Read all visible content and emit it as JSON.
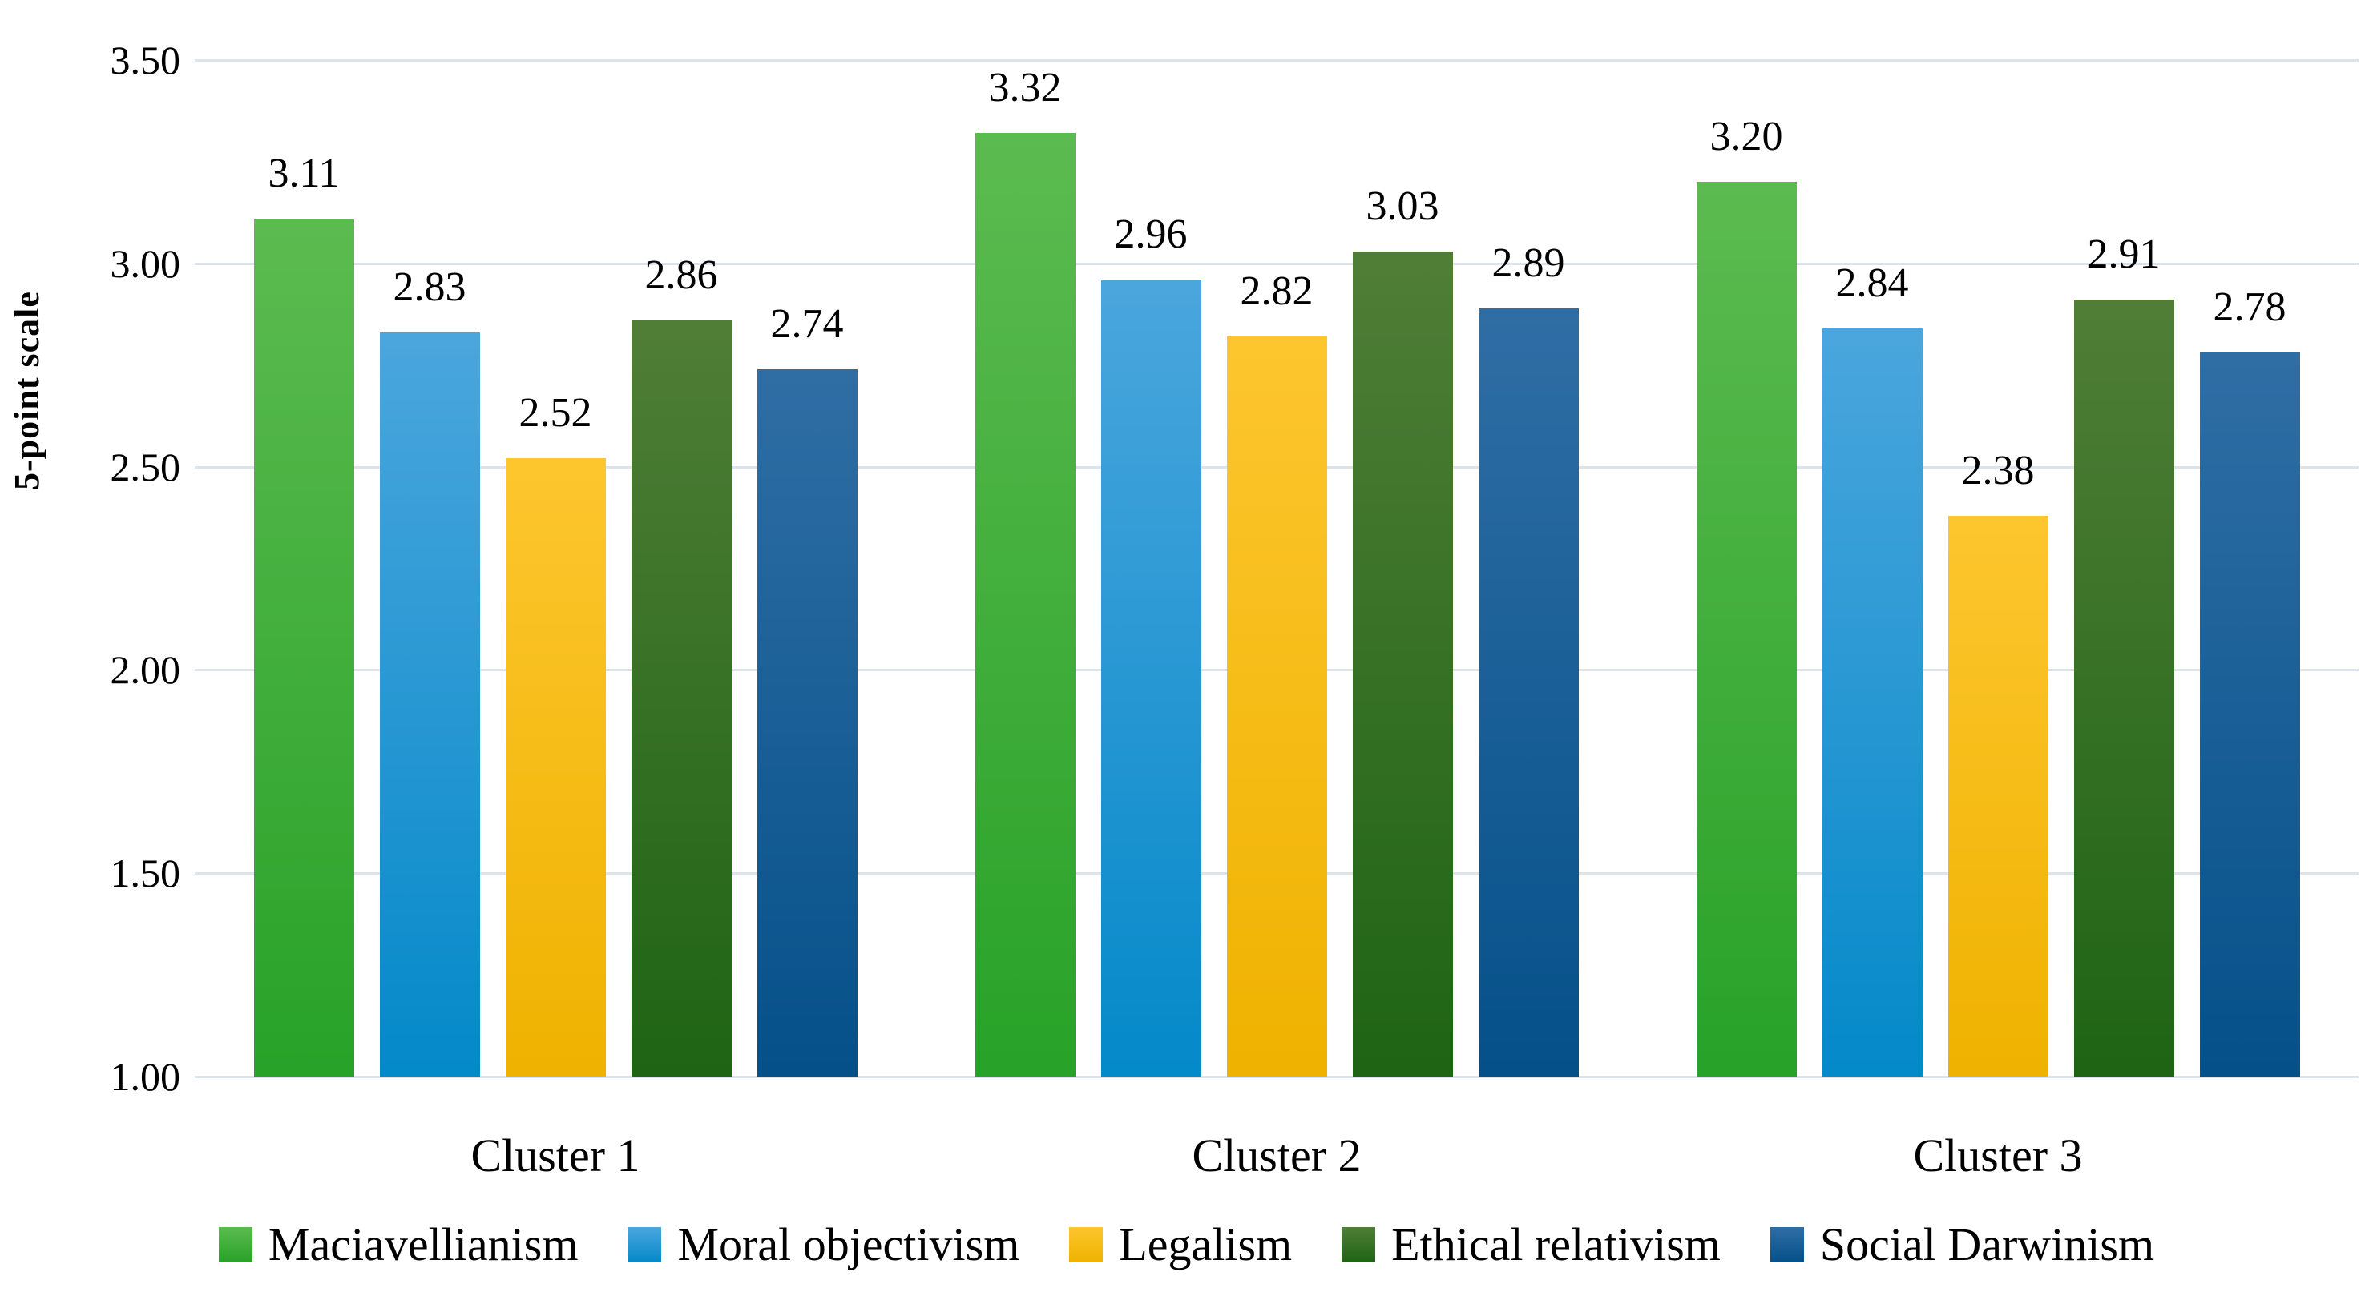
{
  "chart_data": {
    "type": "bar",
    "title": "",
    "ylabel": "5-point scale",
    "xlabel": "",
    "ylim": [
      1.0,
      3.5
    ],
    "ytick_step": 0.5,
    "yticks": [
      3.5,
      3.0,
      2.5,
      2.0,
      1.5,
      1.0
    ],
    "ytick_labels": [
      "3.50",
      "3.00",
      "2.50",
      "2.00",
      "1.50",
      "1.00"
    ],
    "categories": [
      "Cluster 1",
      "Cluster 2",
      "Cluster 3"
    ],
    "series": [
      {
        "name": "Maciavellianism",
        "values": [
          3.11,
          3.32,
          3.2
        ],
        "color_top": "#5cbb50",
        "color_bottom": "#28a228"
      },
      {
        "name": "Moral objectivism",
        "values": [
          2.83,
          2.96,
          2.84
        ],
        "color_top": "#4ba6dd",
        "color_bottom": "#0489c9"
      },
      {
        "name": "Legalism",
        "values": [
          2.52,
          2.82,
          2.38
        ],
        "color_top": "#fdc62e",
        "color_bottom": "#efb200"
      },
      {
        "name": "Ethical relativism",
        "values": [
          2.86,
          3.03,
          2.91
        ],
        "color_top": "#507e37",
        "color_bottom": "#1e6414"
      },
      {
        "name": "Social Darwinism",
        "values": [
          2.74,
          2.89,
          2.78
        ],
        "color_top": "#2f6ea5",
        "color_bottom": "#055089"
      }
    ],
    "value_labels_shown": true,
    "value_label_decimals": 2,
    "grid": true,
    "gridline_color": "#dde3eb",
    "legend_position": "bottom"
  }
}
